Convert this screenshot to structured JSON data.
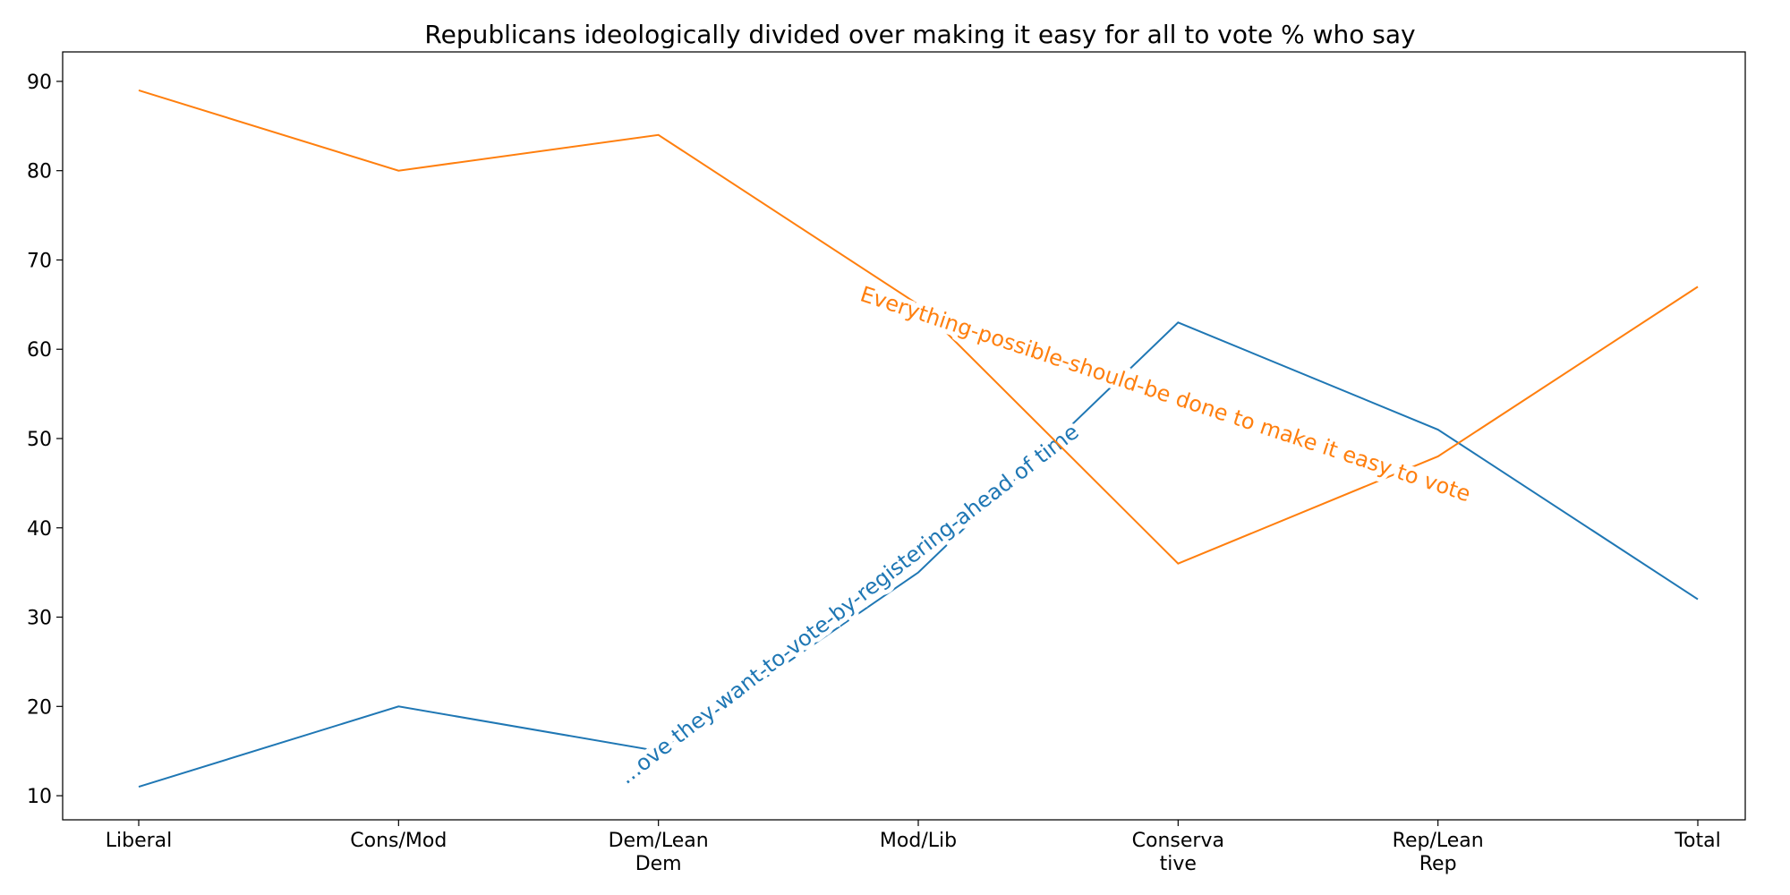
{
  "chart_data": {
    "type": "line",
    "title": "Republicans ideologically divided over making it easy for all to vote % who say",
    "xlabel": "",
    "ylabel": "",
    "categories": [
      "Liberal",
      "Cons/Mod",
      "Dem/Lean Dem",
      "Mod/Lib",
      "Conservative",
      "Rep/Lean Rep",
      "Total"
    ],
    "category_lines": [
      [
        "Liberal"
      ],
      [
        "Cons/Mod"
      ],
      [
        "Dem/Lean",
        "Dem"
      ],
      [
        "Mod/Lib"
      ],
      [
        "Conserva",
        "tive"
      ],
      [
        "Rep/Lean",
        "Rep"
      ],
      [
        "Total"
      ]
    ],
    "ylim": [
      7.3,
      93.3
    ],
    "yticks": [
      10,
      20,
      30,
      40,
      50,
      60,
      70,
      80,
      90
    ],
    "grid": false,
    "series": [
      {
        "id": "registering",
        "inline_label": "...ove they want-to-vote-by-registering-ahead of time",
        "color": "#1f77b4",
        "values": [
          11,
          20,
          15,
          35,
          63,
          51,
          32
        ]
      },
      {
        "id": "easy",
        "inline_label": "Everything-possible-should-be done to make it easy to vote",
        "color": "#ff7f0e",
        "values": [
          89,
          80,
          84,
          65,
          36,
          48,
          67
        ]
      }
    ]
  }
}
